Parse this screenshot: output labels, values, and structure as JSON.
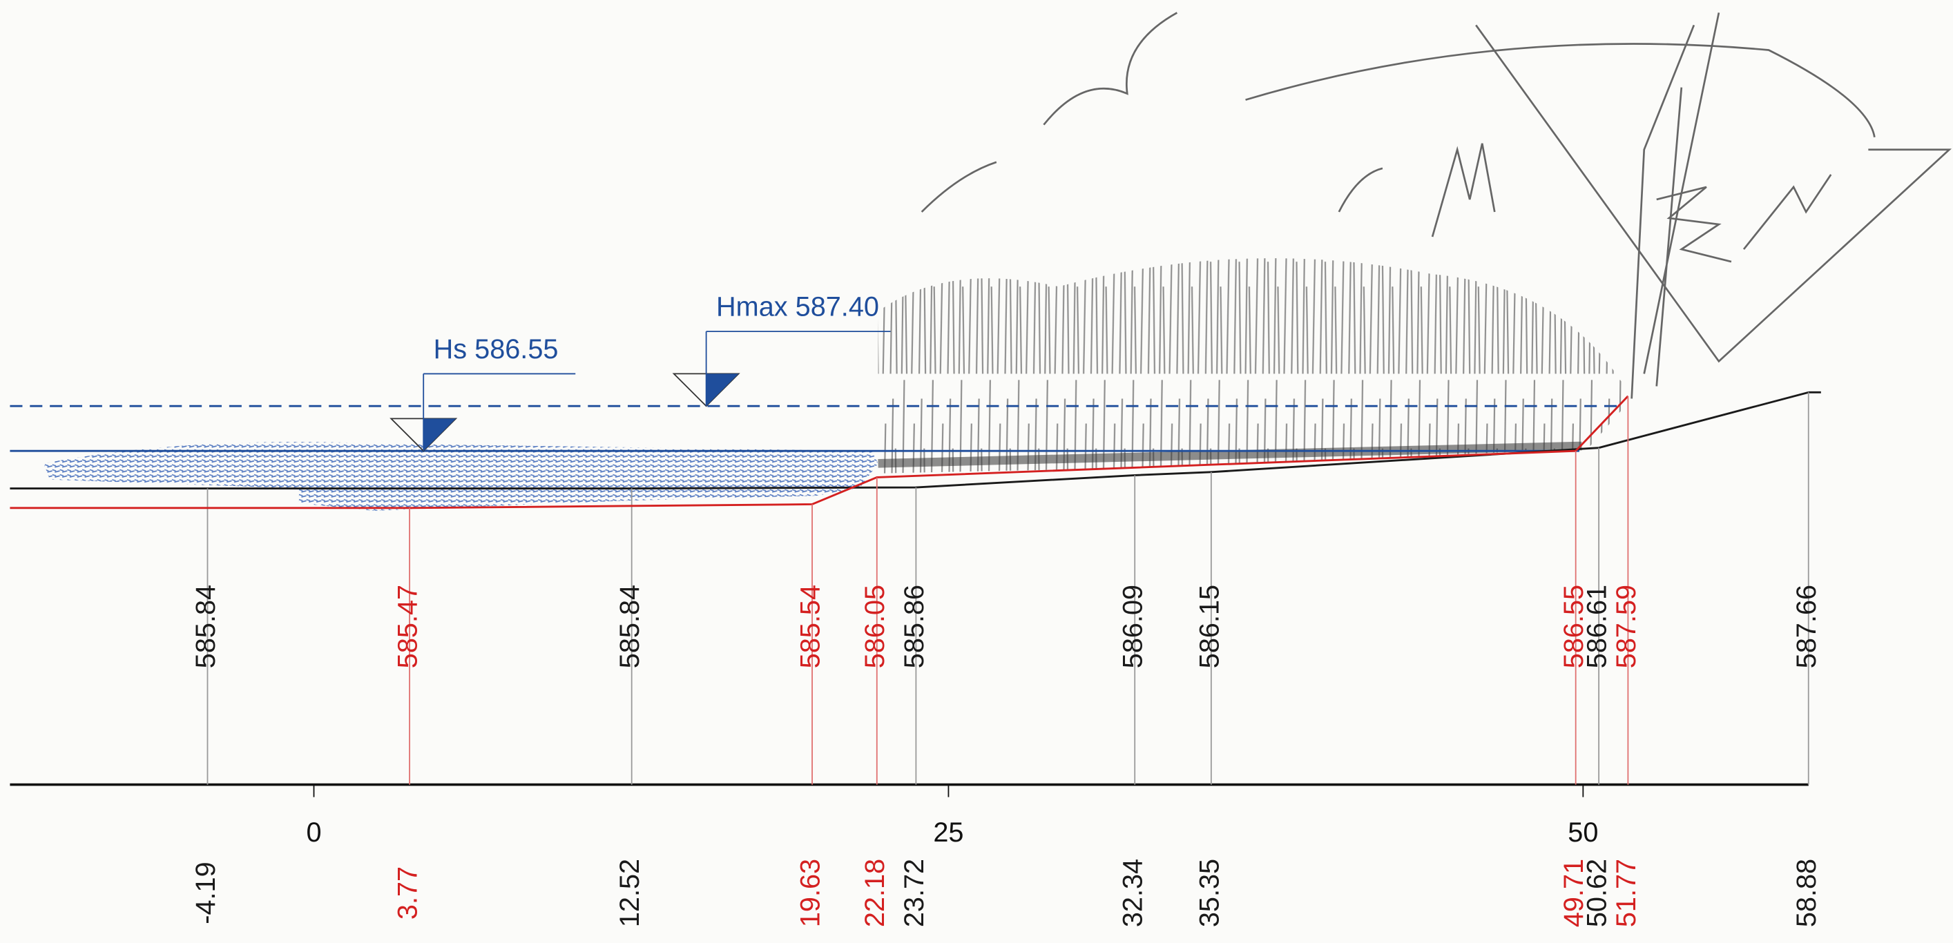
{
  "profile": {
    "existing": {
      "color": "#1a1a1a",
      "stations": [
        -4.19,
        12.52,
        23.72,
        32.34,
        35.35,
        50.62,
        58.88
      ],
      "elevations": [
        585.84,
        585.84,
        585.86,
        586.09,
        586.15,
        586.61,
        587.66
      ]
    },
    "design": {
      "color": "#d42020",
      "stations": [
        3.77,
        19.63,
        22.18,
        49.71,
        51.77
      ],
      "elevations": [
        585.47,
        585.54,
        586.05,
        586.55,
        587.59
      ]
    },
    "axis": {
      "ticks": [
        0,
        25,
        50
      ]
    },
    "water_levels": [
      {
        "label": "Hs",
        "level": 586.55,
        "color": "#1f4e9c"
      },
      {
        "label": "Hmax",
        "level": {
          "value": 587.4,
          "label": "587.40"
        },
        "color": "#1f4e9c"
      }
    ]
  }
}
